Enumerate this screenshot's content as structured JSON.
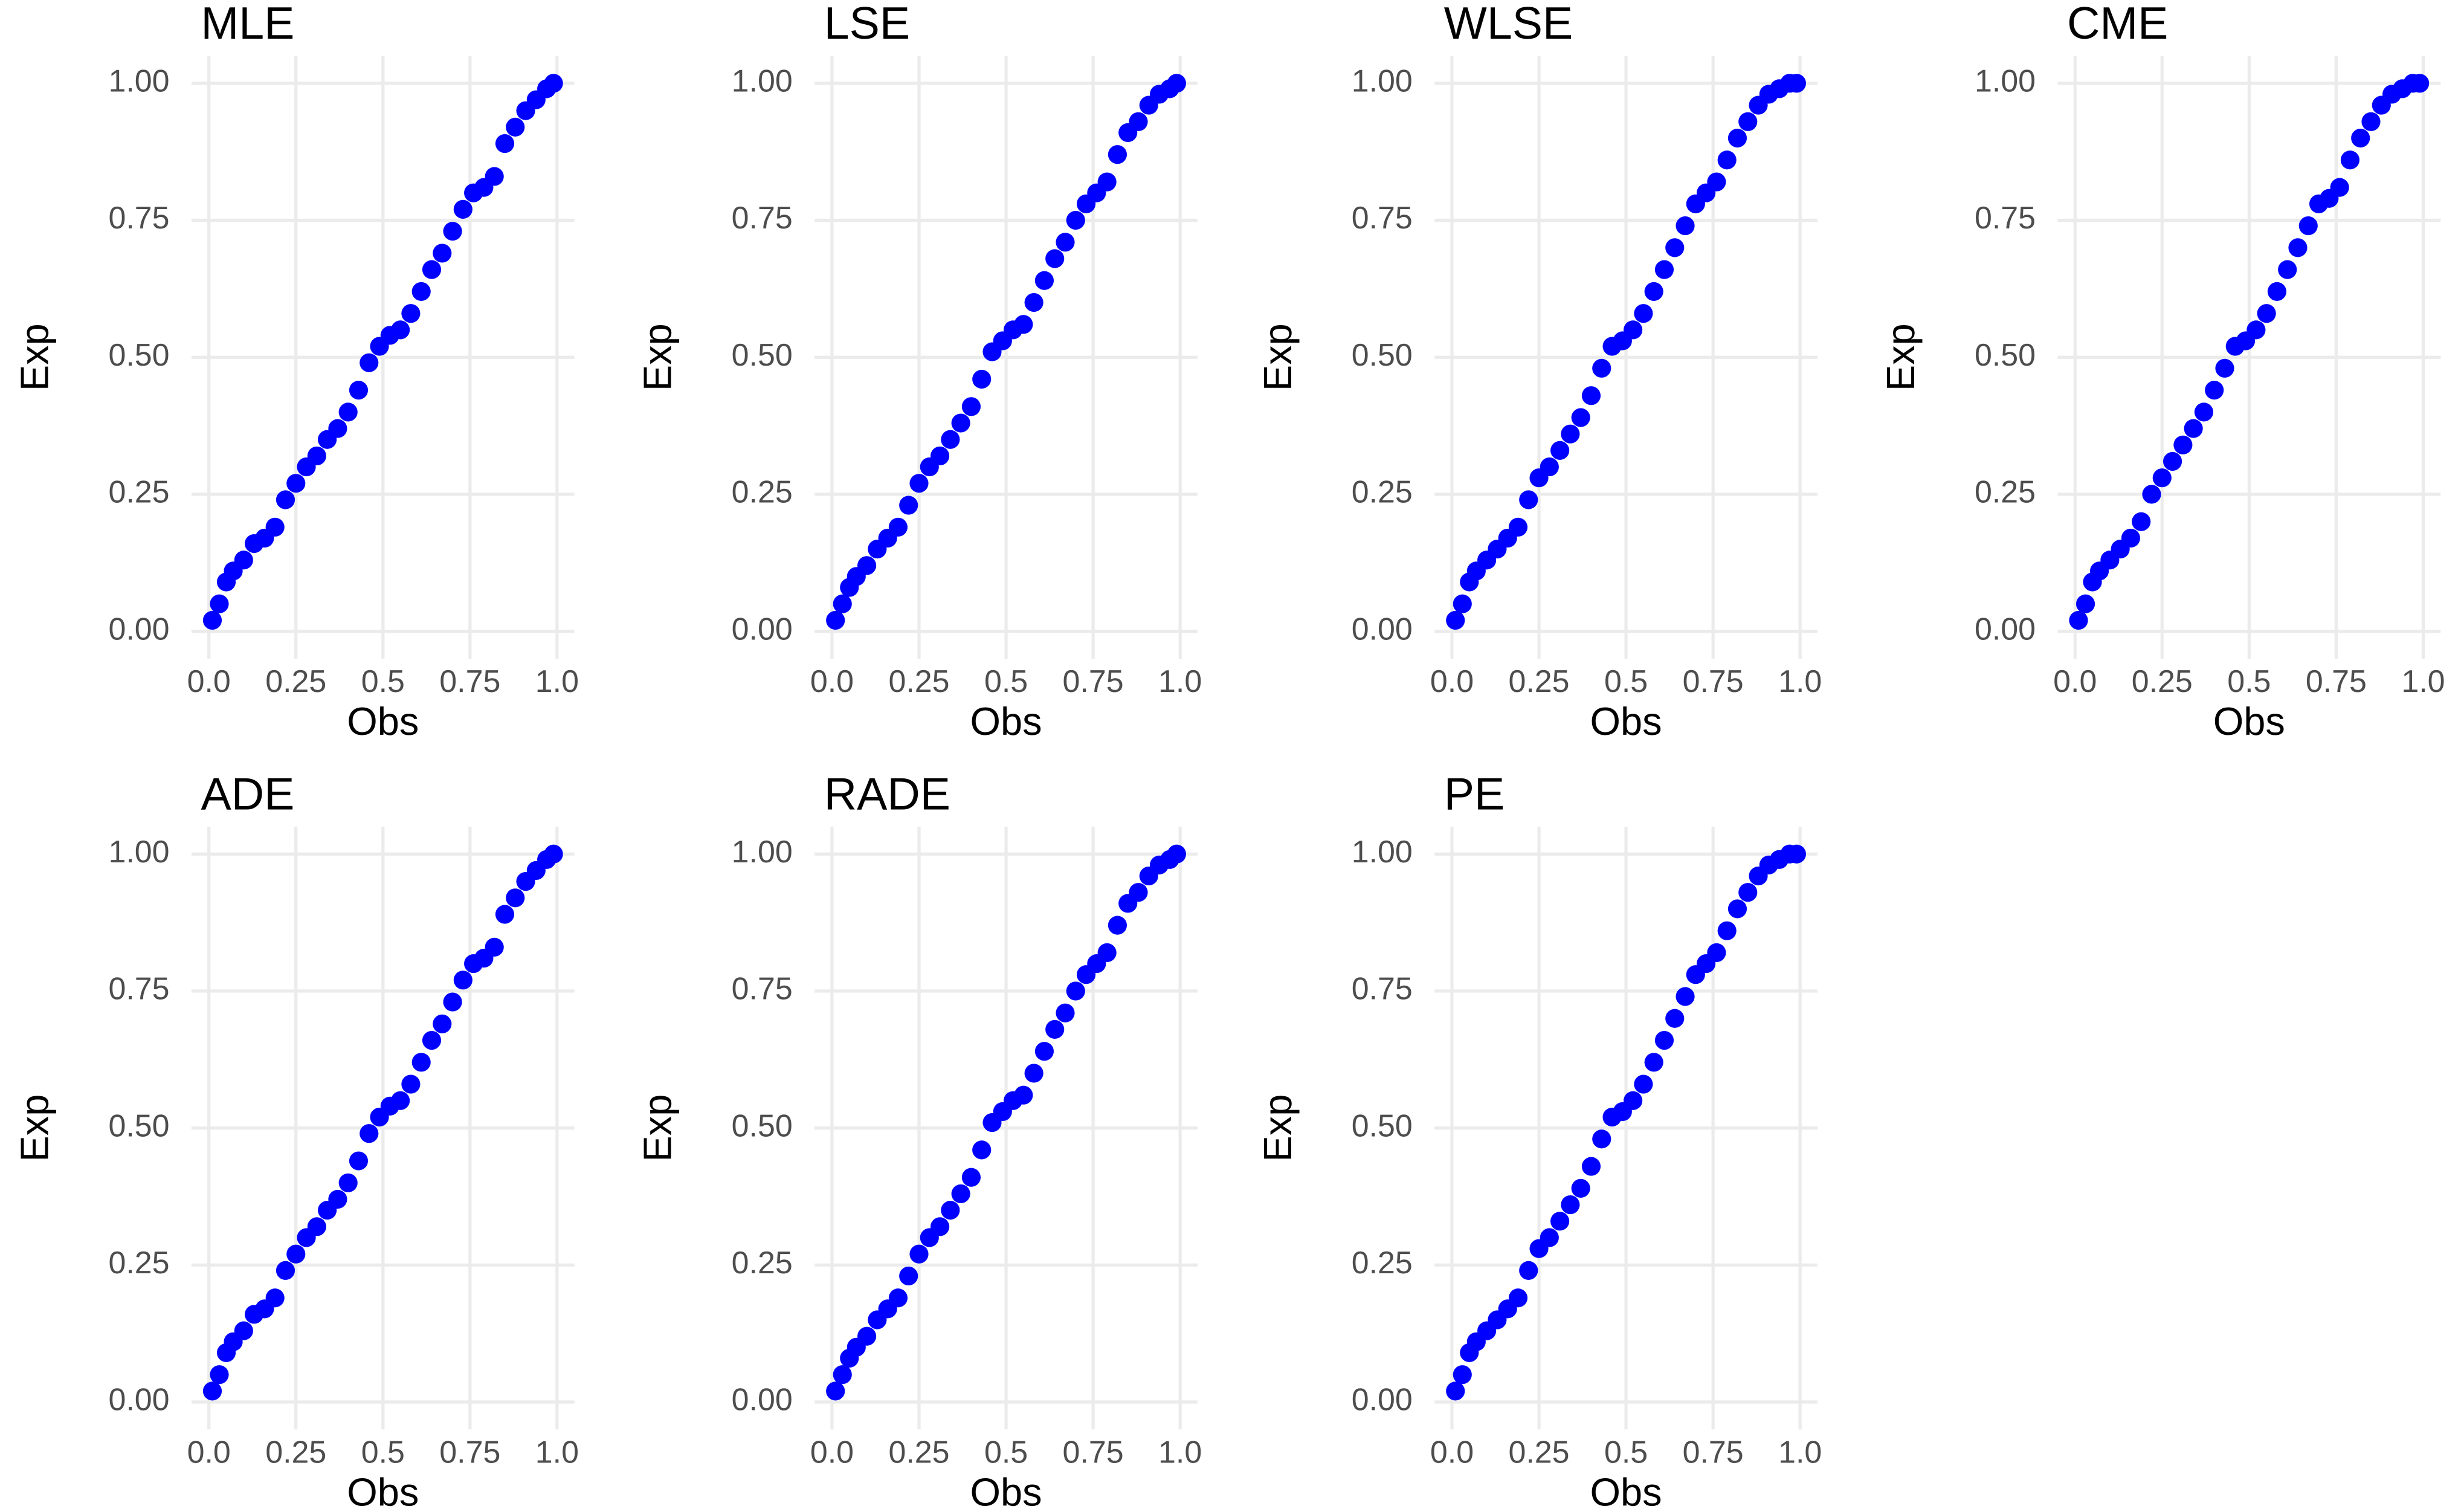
{
  "chart_data": [
    {
      "type": "scatter",
      "title": "MLE",
      "xlabel": "Obs",
      "ylabel": "Exp",
      "color": "#0000ff",
      "grid": true,
      "x": [
        0.01,
        0.03,
        0.05,
        0.07,
        0.1,
        0.13,
        0.16,
        0.19,
        0.22,
        0.25,
        0.28,
        0.31,
        0.34,
        0.37,
        0.4,
        0.43,
        0.46,
        0.49,
        0.52,
        0.55,
        0.58,
        0.61,
        0.64,
        0.67,
        0.7,
        0.73,
        0.76,
        0.79,
        0.82,
        0.85,
        0.88,
        0.91,
        0.94,
        0.97,
        0.99
      ],
      "values": [
        0.02,
        0.05,
        0.09,
        0.11,
        0.13,
        0.16,
        0.17,
        0.19,
        0.24,
        0.27,
        0.3,
        0.32,
        0.35,
        0.37,
        0.4,
        0.44,
        0.49,
        0.52,
        0.54,
        0.55,
        0.58,
        0.62,
        0.66,
        0.69,
        0.73,
        0.77,
        0.8,
        0.81,
        0.83,
        0.89,
        0.92,
        0.95,
        0.97,
        0.99,
        1.0
      ],
      "xlim": [
        -0.05,
        1.05
      ],
      "ylim": [
        -0.05,
        1.05
      ],
      "xticks": [
        {
          "value": 0,
          "label": "0.0"
        },
        0.25,
        0.5,
        0.75,
        {
          "value": 1,
          "label": "1.0"
        }
      ],
      "yticks": [
        {
          "value": 0,
          "label": "0.00"
        },
        0.25,
        {
          "value": 0.5,
          "label": "0.50"
        },
        0.75,
        {
          "value": 1,
          "label": "1.00"
        }
      ]
    },
    {
      "type": "scatter",
      "title": "LSE",
      "xlabel": "Obs",
      "ylabel": "Exp",
      "color": "#0000ff",
      "grid": true,
      "x": [
        0.01,
        0.03,
        0.05,
        0.07,
        0.1,
        0.13,
        0.16,
        0.19,
        0.22,
        0.25,
        0.28,
        0.31,
        0.34,
        0.37,
        0.4,
        0.43,
        0.46,
        0.49,
        0.52,
        0.55,
        0.58,
        0.61,
        0.64,
        0.67,
        0.7,
        0.73,
        0.76,
        0.79,
        0.82,
        0.85,
        0.88,
        0.91,
        0.94,
        0.97,
        0.99
      ],
      "values": [
        0.02,
        0.05,
        0.08,
        0.1,
        0.12,
        0.15,
        0.17,
        0.19,
        0.23,
        0.27,
        0.3,
        0.32,
        0.35,
        0.38,
        0.41,
        0.46,
        0.51,
        0.53,
        0.55,
        0.56,
        0.6,
        0.64,
        0.68,
        0.71,
        0.75,
        0.78,
        0.8,
        0.82,
        0.87,
        0.91,
        0.93,
        0.96,
        0.98,
        0.99,
        1.0
      ],
      "xlim": [
        -0.05,
        1.05
      ],
      "ylim": [
        -0.05,
        1.05
      ],
      "xticks": [
        {
          "value": 0,
          "label": "0.0"
        },
        0.25,
        0.5,
        0.75,
        {
          "value": 1,
          "label": "1.0"
        }
      ],
      "yticks": [
        {
          "value": 0,
          "label": "0.00"
        },
        0.25,
        {
          "value": 0.5,
          "label": "0.50"
        },
        0.75,
        {
          "value": 1,
          "label": "1.00"
        }
      ]
    },
    {
      "type": "scatter",
      "title": "WLSE",
      "xlabel": "Obs",
      "ylabel": "Exp",
      "color": "#0000ff",
      "grid": true,
      "x": [
        0.01,
        0.03,
        0.05,
        0.07,
        0.1,
        0.13,
        0.16,
        0.19,
        0.22,
        0.25,
        0.28,
        0.31,
        0.34,
        0.37,
        0.4,
        0.43,
        0.46,
        0.49,
        0.52,
        0.55,
        0.58,
        0.61,
        0.64,
        0.67,
        0.7,
        0.73,
        0.76,
        0.79,
        0.82,
        0.85,
        0.88,
        0.91,
        0.94,
        0.97,
        0.99
      ],
      "values": [
        0.02,
        0.05,
        0.09,
        0.11,
        0.13,
        0.15,
        0.17,
        0.19,
        0.24,
        0.28,
        0.3,
        0.33,
        0.36,
        0.39,
        0.43,
        0.48,
        0.52,
        0.53,
        0.55,
        0.58,
        0.62,
        0.66,
        0.7,
        0.74,
        0.78,
        0.8,
        0.82,
        0.86,
        0.9,
        0.93,
        0.96,
        0.98,
        0.99,
        1.0,
        1.0
      ],
      "xlim": [
        -0.05,
        1.05
      ],
      "ylim": [
        -0.05,
        1.05
      ],
      "xticks": [
        {
          "value": 0,
          "label": "0.0"
        },
        0.25,
        0.5,
        0.75,
        {
          "value": 1,
          "label": "1.0"
        }
      ],
      "yticks": [
        {
          "value": 0,
          "label": "0.00"
        },
        0.25,
        {
          "value": 0.5,
          "label": "0.50"
        },
        0.75,
        {
          "value": 1,
          "label": "1.00"
        }
      ]
    },
    {
      "type": "scatter",
      "title": "CME",
      "xlabel": "Obs",
      "ylabel": "Exp",
      "color": "#0000ff",
      "grid": true,
      "x": [
        0.01,
        0.03,
        0.05,
        0.07,
        0.1,
        0.13,
        0.16,
        0.19,
        0.22,
        0.25,
        0.28,
        0.31,
        0.34,
        0.37,
        0.4,
        0.43,
        0.46,
        0.49,
        0.52,
        0.55,
        0.58,
        0.61,
        0.64,
        0.67,
        0.7,
        0.73,
        0.76,
        0.79,
        0.82,
        0.85,
        0.88,
        0.91,
        0.94,
        0.97,
        0.99
      ],
      "values": [
        0.02,
        0.05,
        0.09,
        0.11,
        0.13,
        0.15,
        0.17,
        0.2,
        0.25,
        0.28,
        0.31,
        0.34,
        0.37,
        0.4,
        0.44,
        0.48,
        0.52,
        0.53,
        0.55,
        0.58,
        0.62,
        0.66,
        0.7,
        0.74,
        0.78,
        0.79,
        0.81,
        0.86,
        0.9,
        0.93,
        0.96,
        0.98,
        0.99,
        1.0,
        1.0
      ],
      "xlim": [
        -0.05,
        1.05
      ],
      "ylim": [
        -0.05,
        1.05
      ],
      "xticks": [
        {
          "value": 0,
          "label": "0.0"
        },
        0.25,
        0.5,
        0.75,
        {
          "value": 1,
          "label": "1.0"
        }
      ],
      "yticks": [
        {
          "value": 0,
          "label": "0.00"
        },
        0.25,
        {
          "value": 0.5,
          "label": "0.50"
        },
        0.75,
        {
          "value": 1,
          "label": "1.00"
        }
      ]
    },
    {
      "type": "scatter",
      "title": "ADE",
      "xlabel": "Obs",
      "ylabel": "Exp",
      "color": "#0000ff",
      "grid": true,
      "x": [
        0.01,
        0.03,
        0.05,
        0.07,
        0.1,
        0.13,
        0.16,
        0.19,
        0.22,
        0.25,
        0.28,
        0.31,
        0.34,
        0.37,
        0.4,
        0.43,
        0.46,
        0.49,
        0.52,
        0.55,
        0.58,
        0.61,
        0.64,
        0.67,
        0.7,
        0.73,
        0.76,
        0.79,
        0.82,
        0.85,
        0.88,
        0.91,
        0.94,
        0.97,
        0.99
      ],
      "values": [
        0.02,
        0.05,
        0.09,
        0.11,
        0.13,
        0.16,
        0.17,
        0.19,
        0.24,
        0.27,
        0.3,
        0.32,
        0.35,
        0.37,
        0.4,
        0.44,
        0.49,
        0.52,
        0.54,
        0.55,
        0.58,
        0.62,
        0.66,
        0.69,
        0.73,
        0.77,
        0.8,
        0.81,
        0.83,
        0.89,
        0.92,
        0.95,
        0.97,
        0.99,
        1.0
      ],
      "xlim": [
        -0.05,
        1.05
      ],
      "ylim": [
        -0.05,
        1.05
      ],
      "xticks": [
        {
          "value": 0,
          "label": "0.0"
        },
        0.25,
        0.5,
        0.75,
        {
          "value": 1,
          "label": "1.0"
        }
      ],
      "yticks": [
        {
          "value": 0,
          "label": "0.00"
        },
        0.25,
        {
          "value": 0.5,
          "label": "0.50"
        },
        0.75,
        {
          "value": 1,
          "label": "1.00"
        }
      ]
    },
    {
      "type": "scatter",
      "title": "RADE",
      "xlabel": "Obs",
      "ylabel": "Exp",
      "color": "#0000ff",
      "grid": true,
      "x": [
        0.01,
        0.03,
        0.05,
        0.07,
        0.1,
        0.13,
        0.16,
        0.19,
        0.22,
        0.25,
        0.28,
        0.31,
        0.34,
        0.37,
        0.4,
        0.43,
        0.46,
        0.49,
        0.52,
        0.55,
        0.58,
        0.61,
        0.64,
        0.67,
        0.7,
        0.73,
        0.76,
        0.79,
        0.82,
        0.85,
        0.88,
        0.91,
        0.94,
        0.97,
        0.99
      ],
      "values": [
        0.02,
        0.05,
        0.08,
        0.1,
        0.12,
        0.15,
        0.17,
        0.19,
        0.23,
        0.27,
        0.3,
        0.32,
        0.35,
        0.38,
        0.41,
        0.46,
        0.51,
        0.53,
        0.55,
        0.56,
        0.6,
        0.64,
        0.68,
        0.71,
        0.75,
        0.78,
        0.8,
        0.82,
        0.87,
        0.91,
        0.93,
        0.96,
        0.98,
        0.99,
        1.0
      ],
      "xlim": [
        -0.05,
        1.05
      ],
      "ylim": [
        -0.05,
        1.05
      ],
      "xticks": [
        {
          "value": 0,
          "label": "0.0"
        },
        0.25,
        0.5,
        0.75,
        {
          "value": 1,
          "label": "1.0"
        }
      ],
      "yticks": [
        {
          "value": 0,
          "label": "0.00"
        },
        0.25,
        {
          "value": 0.5,
          "label": "0.50"
        },
        0.75,
        {
          "value": 1,
          "label": "1.00"
        }
      ]
    },
    {
      "type": "scatter",
      "title": "PE",
      "xlabel": "Obs",
      "ylabel": "Exp",
      "color": "#0000ff",
      "grid": true,
      "x": [
        0.01,
        0.03,
        0.05,
        0.07,
        0.1,
        0.13,
        0.16,
        0.19,
        0.22,
        0.25,
        0.28,
        0.31,
        0.34,
        0.37,
        0.4,
        0.43,
        0.46,
        0.49,
        0.52,
        0.55,
        0.58,
        0.61,
        0.64,
        0.67,
        0.7,
        0.73,
        0.76,
        0.79,
        0.82,
        0.85,
        0.88,
        0.91,
        0.94,
        0.97,
        0.99
      ],
      "values": [
        0.02,
        0.05,
        0.09,
        0.11,
        0.13,
        0.15,
        0.17,
        0.19,
        0.24,
        0.28,
        0.3,
        0.33,
        0.36,
        0.39,
        0.43,
        0.48,
        0.52,
        0.53,
        0.55,
        0.58,
        0.62,
        0.66,
        0.7,
        0.74,
        0.78,
        0.8,
        0.82,
        0.86,
        0.9,
        0.93,
        0.96,
        0.98,
        0.99,
        1.0,
        1.0
      ],
      "xlim": [
        -0.05,
        1.05
      ],
      "ylim": [
        -0.05,
        1.05
      ],
      "xticks": [
        {
          "value": 0,
          "label": "0.0"
        },
        0.25,
        0.5,
        0.75,
        {
          "value": 1,
          "label": "1.0"
        }
      ],
      "yticks": [
        {
          "value": 0,
          "label": "0.00"
        },
        0.25,
        {
          "value": 0.5,
          "label": "0.50"
        },
        0.75,
        {
          "value": 1,
          "label": "1.00"
        }
      ]
    }
  ]
}
